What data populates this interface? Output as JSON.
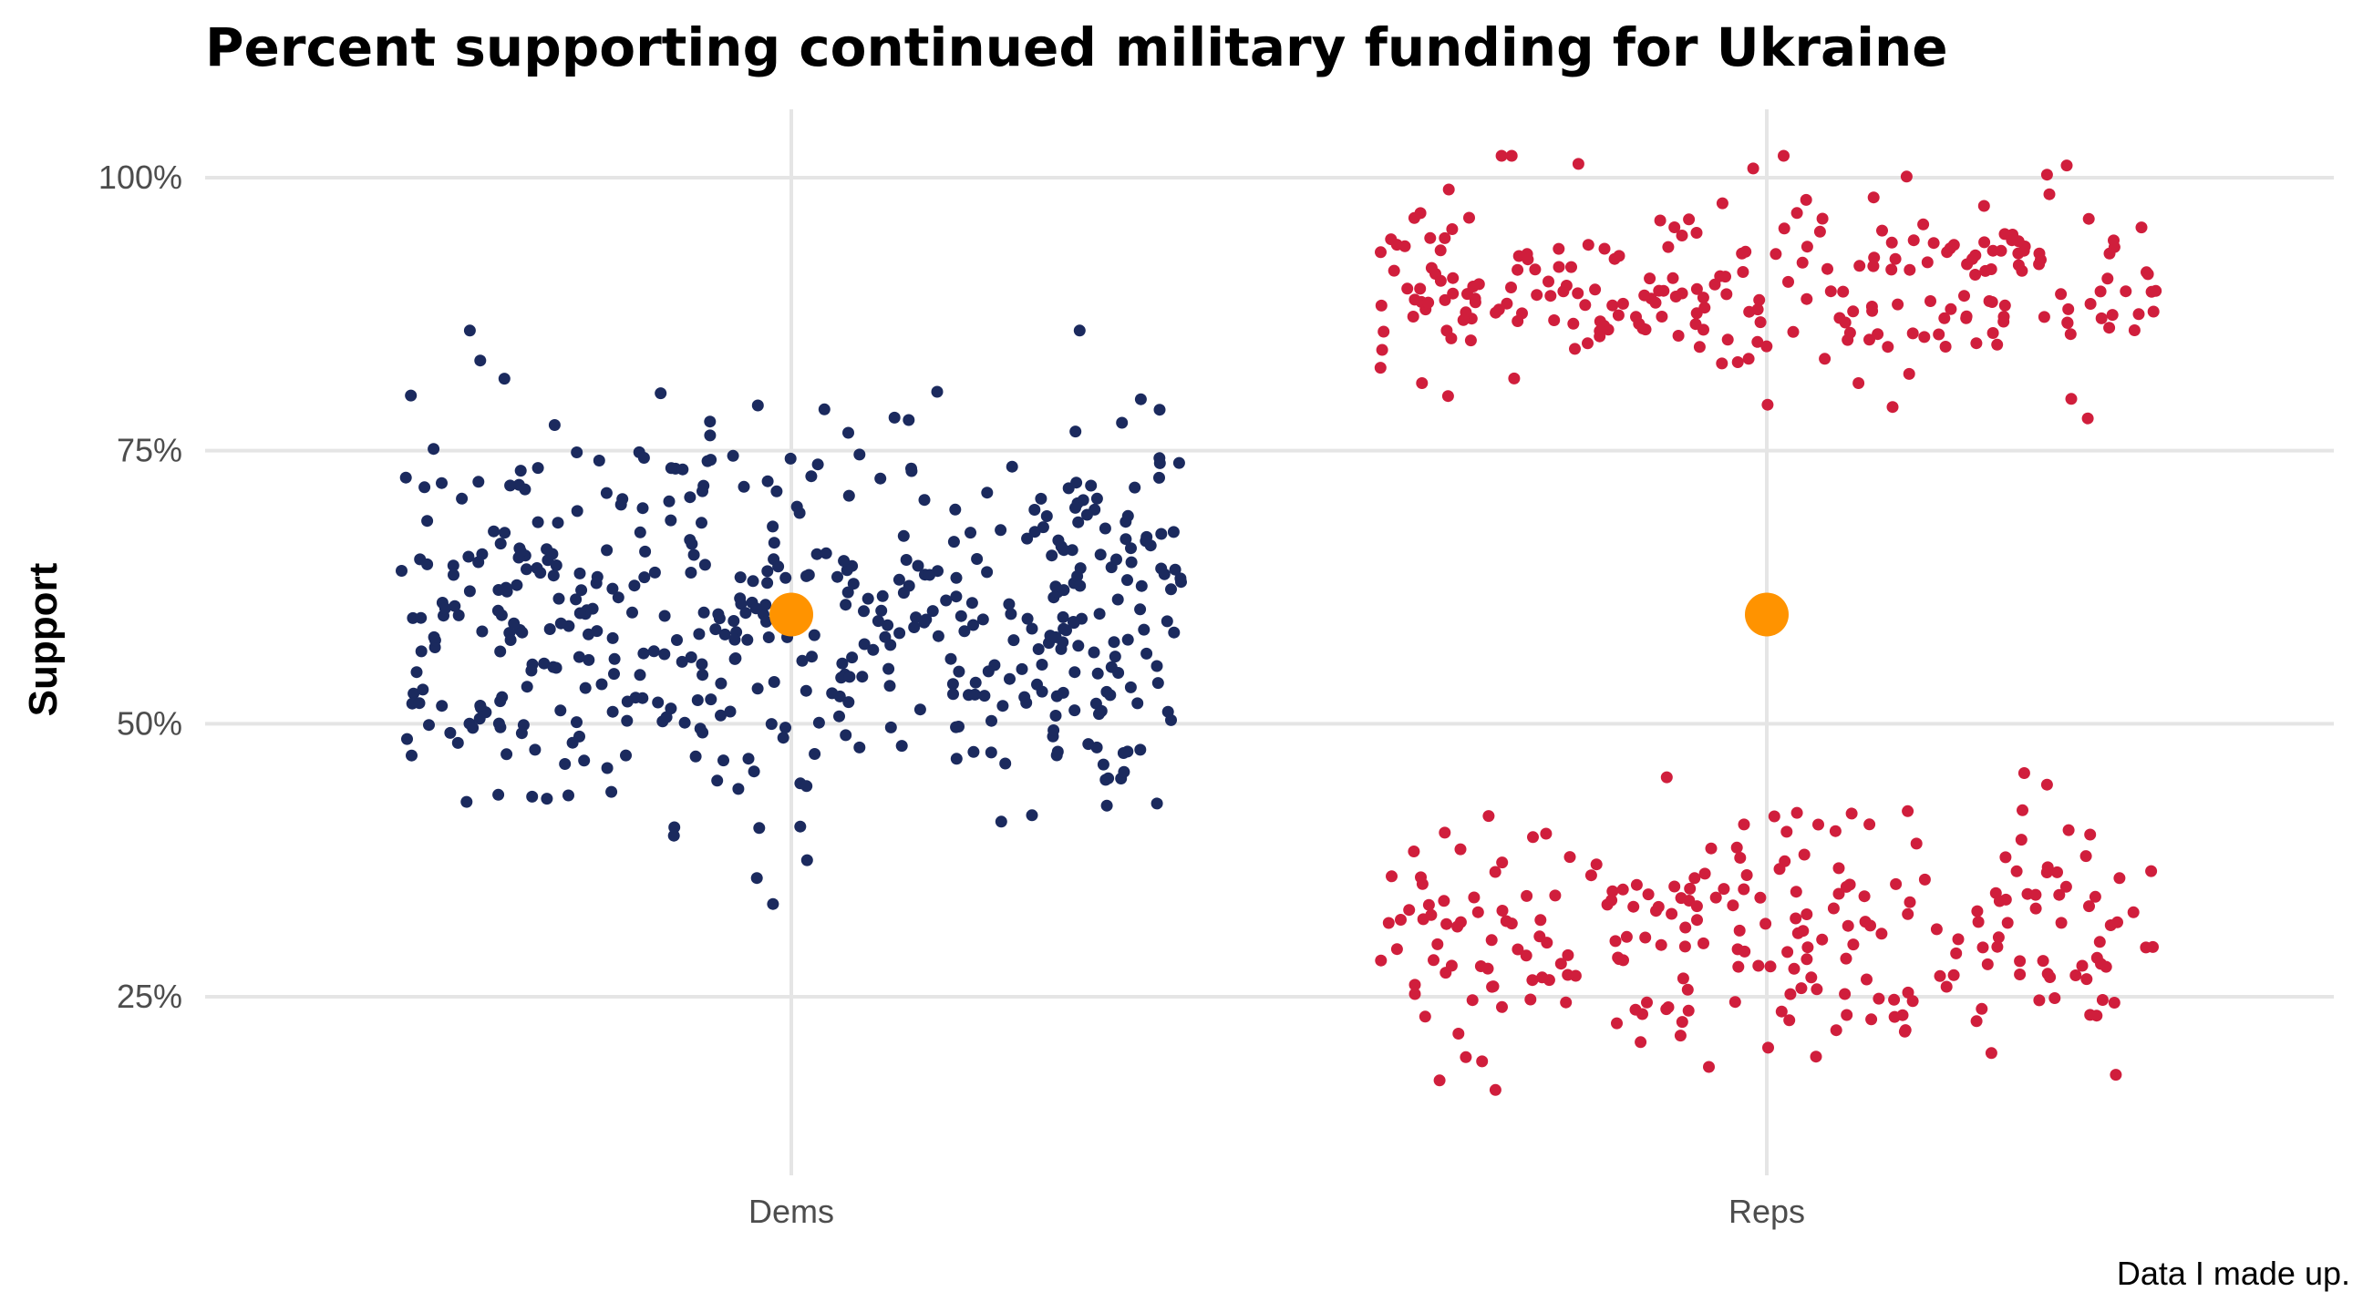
{
  "chart_data": {
    "type": "scatter",
    "title": "Percent supporting continued military funding for Ukraine",
    "xlabel": "",
    "ylabel": "Support",
    "caption": "Data I made up.",
    "categories": [
      "Dems",
      "Reps"
    ],
    "ylim": [
      0.1,
      1.02
    ],
    "yticks": [
      0.25,
      0.5,
      0.75,
      1.0
    ],
    "ytick_labels": [
      "25%",
      "50%",
      "75%",
      "100%"
    ],
    "grid": true,
    "legend": "none",
    "jitter_width": 0.4,
    "colors": {
      "Dems": "#1b2a5e",
      "Reps": "#d01e3c",
      "mean": "#ff9300"
    },
    "means": [
      {
        "category": "Dems",
        "value": 0.6
      },
      {
        "category": "Reps",
        "value": 0.6
      }
    ],
    "series": [
      {
        "category": "Dems",
        "distribution": "normal",
        "center": 0.6,
        "spread": 0.09,
        "n": 500,
        "range": [
          0.32,
          0.86
        ]
      },
      {
        "category": "Reps",
        "distribution": "bimodal",
        "clusters": [
          {
            "center": 0.9,
            "spread": 0.045,
            "n": 250,
            "range": [
              0.75,
              1.02
            ]
          },
          {
            "center": 0.3,
            "spread": 0.055,
            "n": 250,
            "range": [
              0.13,
              0.46
            ]
          }
        ]
      }
    ]
  }
}
